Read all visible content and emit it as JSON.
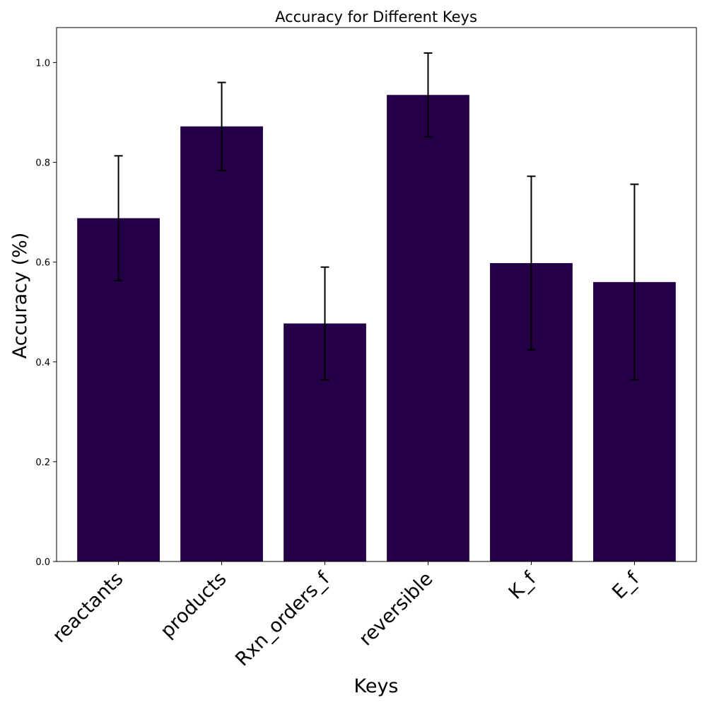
{
  "chart_data": {
    "type": "bar",
    "title": "Accuracy for Different Keys",
    "xlabel": "Keys",
    "ylabel": "Accuracy (%)",
    "categories": [
      "reactants",
      "products",
      "Rxn_orders_f",
      "reversible",
      "K_f",
      "E_f"
    ],
    "values": [
      0.688,
      0.872,
      0.477,
      0.935,
      0.598,
      0.56
    ],
    "errors": [
      0.125,
      0.088,
      0.113,
      0.084,
      0.174,
      0.196
    ],
    "ylim": [
      0,
      1.07
    ],
    "yticks": [
      0.0,
      0.2,
      0.4,
      0.6,
      0.8,
      1.0
    ],
    "ytick_labels": [
      "0.0",
      "0.2",
      "0.4",
      "0.6",
      "0.8",
      "1.0"
    ],
    "grid": false,
    "bar_color": "#240046",
    "error_color": "#000000"
  }
}
